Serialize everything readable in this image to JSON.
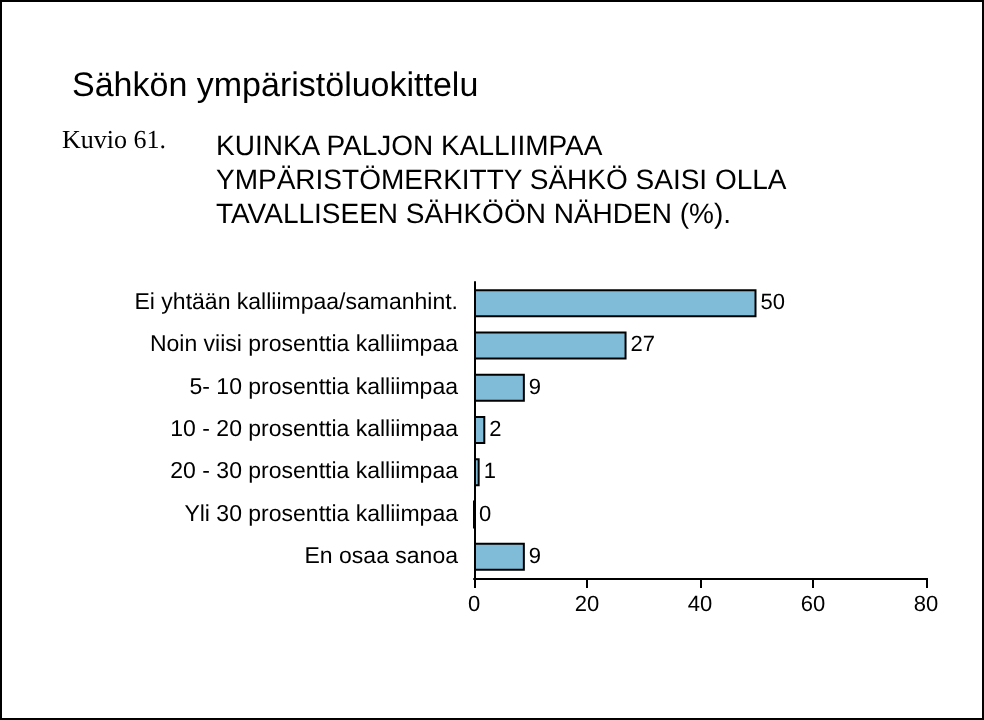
{
  "chart_data": {
    "type": "bar",
    "orientation": "horizontal",
    "title": "Sähkön ympäristöluokittelu",
    "subtitle": "KUINKA PALJON KALLIIMPAA YMPÄRISTÖMERKITTY SÄHKÖ SAISI OLLA TAVALLISEEN SÄHKÖÖN NÄHDEN (%).",
    "annotations": [
      "Kuvio 61."
    ],
    "categories": [
      "Ei yhtään kalliimpaa/samanhint.",
      "Noin viisi prosenttia kalliimpaa",
      "5- 10 prosenttia kalliimpaa",
      "10 - 20 prosenttia kalliimpaa",
      "20 - 30 prosenttia kalliimpaa",
      "Yli 30 prosenttia kalliimpaa",
      "En osaa sanoa"
    ],
    "values": [
      50,
      27,
      9,
      2,
      1,
      0,
      9
    ],
    "color": "#80bcd8",
    "xlim": [
      0,
      80
    ],
    "xticks": [
      0,
      20,
      40,
      60,
      80
    ],
    "grid": false,
    "data_labels": true
  }
}
